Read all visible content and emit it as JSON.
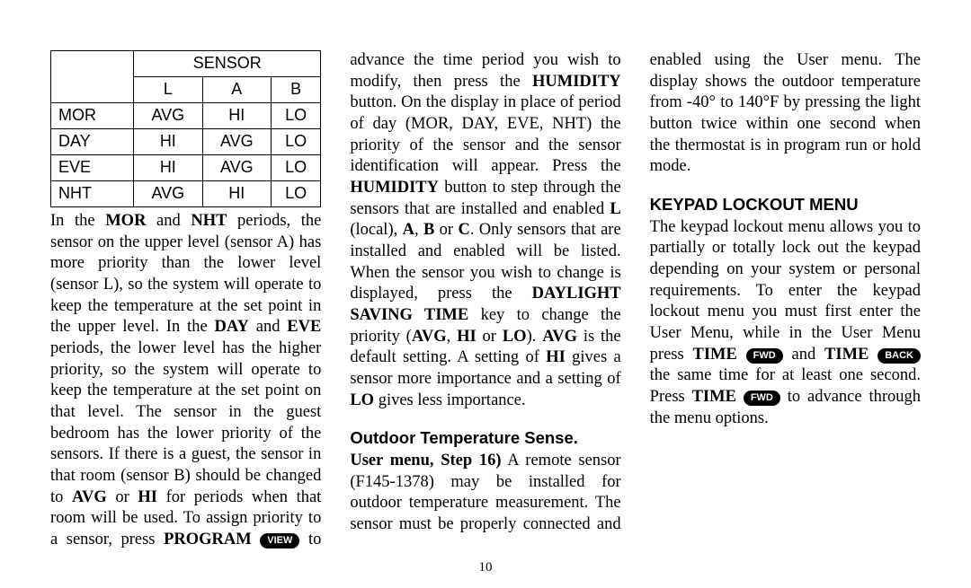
{
  "page_number": "10",
  "table": {
    "header_span": "SENSOR",
    "sub_headers": [
      "L",
      "A",
      "B"
    ],
    "rows": [
      {
        "label": "MOR",
        "cells": [
          "AVG",
          "HI",
          "LO"
        ]
      },
      {
        "label": "DAY",
        "cells": [
          "HI",
          "AVG",
          "LO"
        ]
      },
      {
        "label": "EVE",
        "cells": [
          "HI",
          "AVG",
          "LO"
        ]
      },
      {
        "label": "NHT",
        "cells": [
          "AVG",
          "HI",
          "LO"
        ]
      }
    ]
  },
  "p1": {
    "t0": "In the ",
    "b0": "MOR",
    "t1": " and ",
    "b1": "NHT",
    "t2": " periods, the sensor on the upper level (sensor A) has more priority than the lower level (sensor L), so the system will operate to keep the temperature at the set point in the upper level. In the ",
    "b2": "DAY",
    "t3": " and ",
    "b3": "EVE",
    "t4": " periods, the lower level has the higher priority, so the system will operate to keep the temperature at the set point on that level. The sensor in the guest bedroom has the lower priority of the sensors. If there is a guest, the sensor in that room (sensor B) should be changed to ",
    "b4": "AVG",
    "t5": " or ",
    "b5": "HI",
    "t6": " for periods when that room will be used. To assign priority to a sensor, press ",
    "b6": "PROGRAM",
    "pill0": "VIEW",
    "t7": " to advance the time period you wish to modify, then press the ",
    "b7": "HUMIDITY",
    "t8": " button. On the display in place of period of day (MOR, DAY, EVE, NHT) the priority of the sensor and the sensor identification will appear. Press the ",
    "b8": "HUMIDITY",
    "t9": " button to step through the sensors that are installed and enabled ",
    "b9": "L",
    "t10": " (local), ",
    "b10": "A",
    "t11": ", ",
    "b11": "B",
    "t12": " or ",
    "b12": "C",
    "t13": ". Only sensors that are installed and enabled will be listed. When the sensor you wish to change is displayed, press the ",
    "b13": "DAYLIGHT SAVING TIME",
    "t14": " key to change the priority (",
    "b14": "AVG",
    "t15": ", ",
    "b15": "HI",
    "t16": " or ",
    "b16": "LO",
    "t17": "). ",
    "b17": "AVG",
    "t18": " is the default setting. A setting of ",
    "b18": "HI",
    "t19": " gives a sensor more importance and a setting of ",
    "b19": "LO",
    "t20": " gives less importance."
  },
  "sec1_title": "Outdoor Temperature Sense.",
  "p2": {
    "b0": "User menu, Step 16)",
    "t0": " A remote sensor (F145-1378) may be installed for outdoor temperature measurement. The sensor must be properly connected and enabled using the User menu. The display shows the outdoor temperature from -40° to 140°F by pressing the light button twice within one second when the thermostat is in program run or hold mode."
  },
  "sec2_title": "KEYPAD LOCKOUT MENU",
  "p3": {
    "t0": "The keypad lockout menu allows you to partially or totally lock out the keypad depending on your system or personal requirements. To enter the keypad lockout menu you must first enter the User Menu, while in the User Menu press ",
    "b0": "TIME",
    "pill0": "FWD",
    "t1": " and ",
    "b1": "TIME",
    "pill1": "BACK",
    "t2": " the same time for at least one second. Press ",
    "b2": "TIME",
    "pill2": "FWD",
    "t3": " to advance through the menu options."
  }
}
